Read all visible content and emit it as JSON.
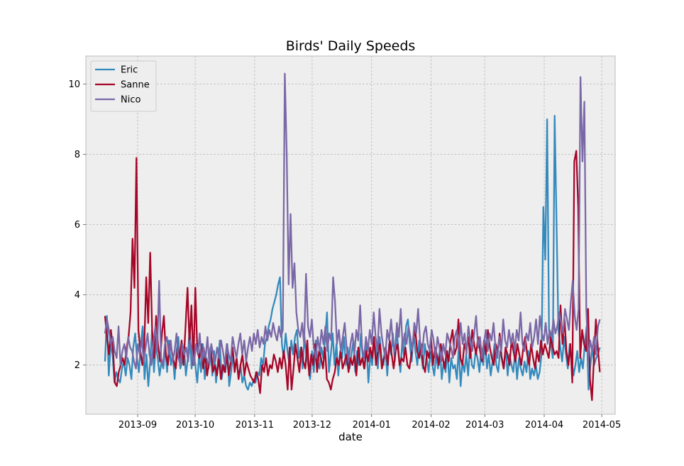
{
  "chart_data": {
    "type": "line",
    "title": "Birds' Daily Speeds",
    "xlabel": "date",
    "ylabel": "",
    "x_start": "2013-08-15",
    "x_end": "2014-04-30",
    "xlim": [
      "2013-08-05",
      "2014-05-08"
    ],
    "ylim": [
      0.6,
      10.8
    ],
    "yticks": [
      2,
      4,
      6,
      8,
      10
    ],
    "xticks": [
      "2013-09",
      "2013-10",
      "2013-11",
      "2013-12",
      "2014-01",
      "2014-02",
      "2014-03",
      "2014-04",
      "2014-05"
    ],
    "grid": true,
    "legend_position": "top-left",
    "background": "#eeeeee",
    "series": [
      {
        "name": "Eric",
        "color": "#348abd",
        "values": [
          2.1,
          3.4,
          1.7,
          2.6,
          2.3,
          1.5,
          1.8,
          1.6,
          1.5,
          1.9,
          2.1,
          1.7,
          2.2,
          2.0,
          1.6,
          2.5,
          2.9,
          2.2,
          1.8,
          2.6,
          3.1,
          1.6,
          2.3,
          1.4,
          2.1,
          3.0,
          1.8,
          2.6,
          2.2,
          1.7,
          2.1,
          1.9,
          2.5,
          1.8,
          2.7,
          2.0,
          2.3,
          1.6,
          2.4,
          2.8,
          1.9,
          2.1,
          2.5,
          1.7,
          2.2,
          3.1,
          1.9,
          2.4,
          2.0,
          1.5,
          2.3,
          1.8,
          2.6,
          1.6,
          2.2,
          1.9,
          2.5,
          1.7,
          2.4,
          1.5,
          2.1,
          2.7,
          1.6,
          2.0,
          1.8,
          2.6,
          1.4,
          1.8,
          2.3,
          1.9,
          2.2,
          1.6,
          2.0,
          1.5,
          1.7,
          1.4,
          1.3,
          1.5,
          1.4,
          1.6,
          1.5,
          1.8,
          1.7,
          2.2,
          2.0,
          2.6,
          2.8,
          3.1,
          3.3,
          3.6,
          3.8,
          4.0,
          4.3,
          4.5,
          2.6,
          2.2,
          2.9,
          2.4,
          2.0,
          2.7,
          2.3,
          2.8,
          3.0,
          2.2,
          2.5,
          1.9,
          2.8,
          2.3,
          2.0,
          1.6,
          2.4,
          1.8,
          2.7,
          2.1,
          1.9,
          2.5,
          2.2,
          2.8,
          3.5,
          1.8,
          2.3,
          2.9,
          2.0,
          2.6,
          1.7,
          2.4,
          2.2,
          2.8,
          2.0,
          2.5,
          1.9,
          2.3,
          2.7,
          1.8,
          2.4,
          2.0,
          2.9,
          2.2,
          1.9,
          2.6,
          1.5,
          2.3,
          2.0,
          2.7,
          2.4,
          1.9,
          2.8,
          2.2,
          2.0,
          2.5,
          1.7,
          2.6,
          2.3,
          2.9,
          2.1,
          3.0,
          2.4,
          1.8,
          2.7,
          2.2,
          3.1,
          3.3,
          2.6,
          2.1,
          2.9,
          2.4,
          2.0,
          2.7,
          2.3,
          1.9,
          2.6,
          2.2,
          1.8,
          2.4,
          2.0,
          1.7,
          2.3,
          1.9,
          2.5,
          1.6,
          2.1,
          1.8,
          2.4,
          1.5,
          2.2,
          1.9,
          2.0,
          1.6,
          2.5,
          1.4,
          2.1,
          1.8,
          2.3,
          1.7,
          2.6,
          2.0,
          1.9,
          2.4,
          2.2,
          1.8,
          2.5,
          2.0,
          2.7,
          1.9,
          2.3,
          1.7,
          2.1,
          2.6,
          2.0,
          1.8,
          2.4,
          2.2,
          1.9,
          2.5,
          1.7,
          2.3,
          2.0,
          1.8,
          2.4,
          1.6,
          2.2,
          1.9,
          1.7,
          2.1,
          1.8,
          2.4,
          1.6,
          1.9,
          1.7,
          2.0,
          1.6,
          1.8,
          2.3,
          6.5,
          5.0,
          9.0,
          3.0,
          2.6,
          2.2,
          9.1,
          6.0,
          3.0,
          2.5,
          2.1,
          2.8,
          2.3,
          1.9,
          2.6,
          2.2,
          1.7,
          2.0,
          2.4,
          1.8,
          2.2,
          1.9,
          2.6,
          3.1,
          1.3,
          2.0,
          2.5,
          2.0,
          2.2,
          2.3,
          2.5
        ]
      },
      {
        "name": "Sanne",
        "color": "#a60628",
        "values": [
          3.4,
          2.8,
          2.3,
          3.0,
          2.5,
          1.5,
          1.4,
          1.8,
          2.0,
          2.2,
          2.0,
          2.5,
          2.8,
          3.5,
          5.6,
          4.2,
          7.9,
          3.0,
          2.4,
          2.0,
          2.6,
          4.5,
          3.2,
          5.2,
          3.0,
          2.2,
          3.4,
          2.6,
          2.1,
          2.9,
          3.4,
          2.3,
          2.0,
          2.6,
          2.4,
          2.1,
          1.9,
          2.5,
          2.2,
          2.7,
          2.0,
          3.1,
          4.2,
          2.6,
          3.7,
          2.0,
          4.2,
          2.4,
          2.2,
          2.6,
          1.9,
          2.3,
          1.7,
          2.1,
          2.4,
          1.8,
          2.0,
          1.7,
          2.2,
          1.6,
          2.0,
          1.8,
          2.3,
          1.7,
          2.1,
          2.5,
          1.8,
          2.2,
          1.6,
          2.0,
          2.3,
          1.7,
          2.1,
          1.9,
          1.7,
          1.6,
          1.5,
          1.8,
          1.6,
          1.2,
          2.0,
          1.8,
          2.2,
          1.7,
          2.0,
          1.9,
          2.3,
          2.1,
          1.8,
          2.2,
          1.9,
          2.4,
          2.0,
          1.3,
          2.5,
          1.3,
          1.9,
          2.6,
          2.2,
          1.8,
          2.5,
          2.1,
          1.9,
          2.7,
          1.7,
          2.3,
          2.0,
          2.6,
          1.8,
          2.4,
          2.2,
          1.9,
          2.5,
          1.6,
          1.5,
          1.3,
          1.6,
          1.8,
          2.2,
          2.0,
          2.4,
          1.9,
          2.1,
          2.3,
          1.8,
          2.2,
          2.0,
          2.3,
          1.7,
          2.5,
          2.0,
          2.2,
          1.9,
          2.4,
          2.1,
          2.5,
          2.2,
          2.8,
          2.0,
          2.4,
          2.6,
          1.9,
          2.2,
          2.5,
          2.0,
          2.7,
          2.3,
          1.9,
          2.4,
          2.6,
          2.0,
          2.2,
          2.1,
          2.5,
          2.0,
          1.9,
          2.3,
          2.7,
          3.0,
          2.4,
          2.2,
          2.6,
          2.0,
          1.8,
          2.4,
          2.2,
          2.8,
          2.0,
          2.5,
          2.3,
          2.0,
          2.6,
          2.2,
          1.9,
          2.4,
          2.1,
          2.7,
          3.0,
          2.3,
          2.5,
          3.3,
          2.2,
          2.0,
          2.6,
          2.4,
          2.8,
          2.2,
          3.0,
          2.6,
          2.3,
          2.8,
          2.4,
          2.1,
          2.7,
          2.3,
          3.0,
          2.5,
          2.2,
          2.0,
          2.6,
          2.4,
          2.9,
          2.2,
          1.9,
          2.5,
          2.3,
          2.0,
          2.7,
          2.4,
          2.1,
          2.6,
          2.3,
          2.0,
          2.5,
          2.8,
          2.3,
          2.0,
          2.6,
          2.2,
          1.9,
          2.4,
          2.1,
          2.7,
          2.3,
          2.6,
          2.4,
          2.2,
          2.8,
          2.5,
          2.3,
          2.4,
          2.2,
          3.7,
          2.6,
          3.3,
          2.4,
          2.0,
          2.6,
          1.5,
          7.8,
          8.1,
          6.5,
          2.2,
          3.0,
          2.6,
          2.4,
          3.6,
          1.6,
          1.0,
          2.2,
          3.3,
          2.5,
          1.8
        ]
      },
      {
        "name": "Nico",
        "color": "#7a68a6",
        "values": [
          2.9,
          3.3,
          3.0,
          2.6,
          2.8,
          2.4,
          2.2,
          3.1,
          2.0,
          2.4,
          2.6,
          2.2,
          2.8,
          2.5,
          2.4,
          2.1,
          1.9,
          2.6,
          2.3,
          2.8,
          2.1,
          2.5,
          2.9,
          2.3,
          2.0,
          2.6,
          3.1,
          2.4,
          4.4,
          2.2,
          2.0,
          2.6,
          2.8,
          2.3,
          2.7,
          2.1,
          2.4,
          2.9,
          2.2,
          2.0,
          2.6,
          2.3,
          2.5,
          2.1,
          2.7,
          2.4,
          2.0,
          2.6,
          2.3,
          2.9,
          2.1,
          2.5,
          2.2,
          2.8,
          2.0,
          2.6,
          2.3,
          2.1,
          2.5,
          2.2,
          2.7,
          2.4,
          2.0,
          2.6,
          2.3,
          2.1,
          2.8,
          2.5,
          2.2,
          2.6,
          2.9,
          2.3,
          2.7,
          2.1,
          2.5,
          2.8,
          2.4,
          2.9,
          2.6,
          3.0,
          2.5,
          2.8,
          2.6,
          3.1,
          2.7,
          3.0,
          2.8,
          3.2,
          2.9,
          2.7,
          3.1,
          2.8,
          3.0,
          10.3,
          8.0,
          4.3,
          6.3,
          4.2,
          4.9,
          3.5,
          3.0,
          2.8,
          3.2,
          2.6,
          4.6,
          3.1,
          2.8,
          3.3,
          2.5,
          2.2,
          2.8,
          2.4,
          3.0,
          2.6,
          3.1,
          2.4,
          2.9,
          2.7,
          4.5,
          3.8,
          2.6,
          3.0,
          2.4,
          2.8,
          3.2,
          2.5,
          2.1,
          2.6,
          2.9,
          2.3,
          3.0,
          2.7,
          3.7,
          2.5,
          2.2,
          2.8,
          2.4,
          3.0,
          2.6,
          3.5,
          2.8,
          2.4,
          3.6,
          2.9,
          2.5,
          2.2,
          3.0,
          2.7,
          3.3,
          2.6,
          2.4,
          3.2,
          2.8,
          3.6,
          2.5,
          2.9,
          2.6,
          3.1,
          2.8,
          2.4,
          3.2,
          2.9,
          3.6,
          2.7,
          2.3,
          2.9,
          3.1,
          2.6,
          2.4,
          3.0,
          2.7,
          2.2,
          2.8,
          2.5,
          2.1,
          2.6,
          2.3,
          2.9,
          2.7,
          2.5,
          2.2,
          2.8,
          3.0,
          2.4,
          3.2,
          2.6,
          2.9,
          2.3,
          3.1,
          2.7,
          2.4,
          2.9,
          3.4,
          2.5,
          2.8,
          2.2,
          2.6,
          3.0,
          2.4,
          2.9,
          2.7,
          3.2,
          2.5,
          2.2,
          2.8,
          2.4,
          3.3,
          2.7,
          2.5,
          3.0,
          2.6,
          2.9,
          2.4,
          3.0,
          2.7,
          3.5,
          2.6,
          2.4,
          2.9,
          2.7,
          3.2,
          2.5,
          2.8,
          3.3,
          2.6,
          3.4,
          2.9,
          2.7,
          3.2,
          2.6,
          3.0,
          2.8,
          3.3,
          2.9,
          3.1,
          3.5,
          3.2,
          2.9,
          3.6,
          3.3,
          3.0,
          3.8,
          4.4,
          3.4,
          3.0,
          3.6,
          10.2,
          7.8,
          9.5,
          3.6,
          2.2,
          2.7,
          2.4,
          2.8,
          2.3,
          3.1,
          3.3
        ]
      }
    ]
  }
}
